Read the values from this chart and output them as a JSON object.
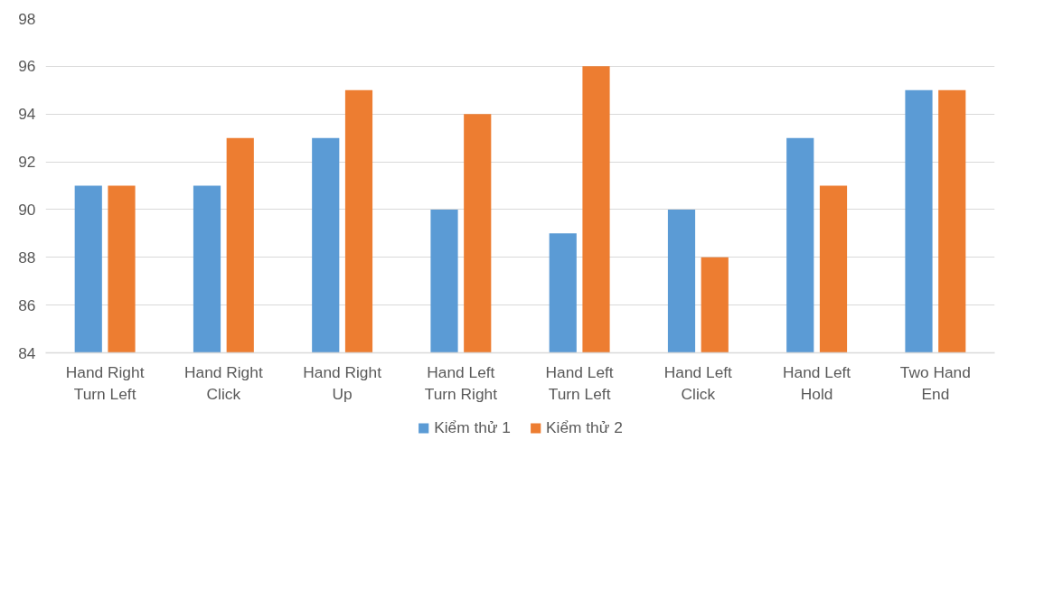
{
  "chart_data": {
    "type": "bar",
    "categories": [
      "Hand Right Turn Left",
      "Hand Right Click",
      "Hand Right Up",
      "Hand Left Turn Right",
      "Hand Left Turn Left",
      "Hand Left Click",
      "Hand Left Hold",
      "Two Hand End"
    ],
    "series": [
      {
        "name": "Kiểm thử 1",
        "color": "#5b9bd5",
        "values": [
          91,
          91,
          93,
          90,
          89,
          90,
          93,
          95
        ]
      },
      {
        "name": "Kiểm thử 2",
        "color": "#ed7d31",
        "values": [
          91,
          93,
          95,
          94,
          96,
          88,
          91,
          95
        ]
      }
    ],
    "ylim": [
      84,
      98
    ],
    "yticks": [
      84,
      86,
      88,
      90,
      92,
      94,
      96,
      98
    ],
    "grid": "y",
    "legend": "bottom"
  }
}
